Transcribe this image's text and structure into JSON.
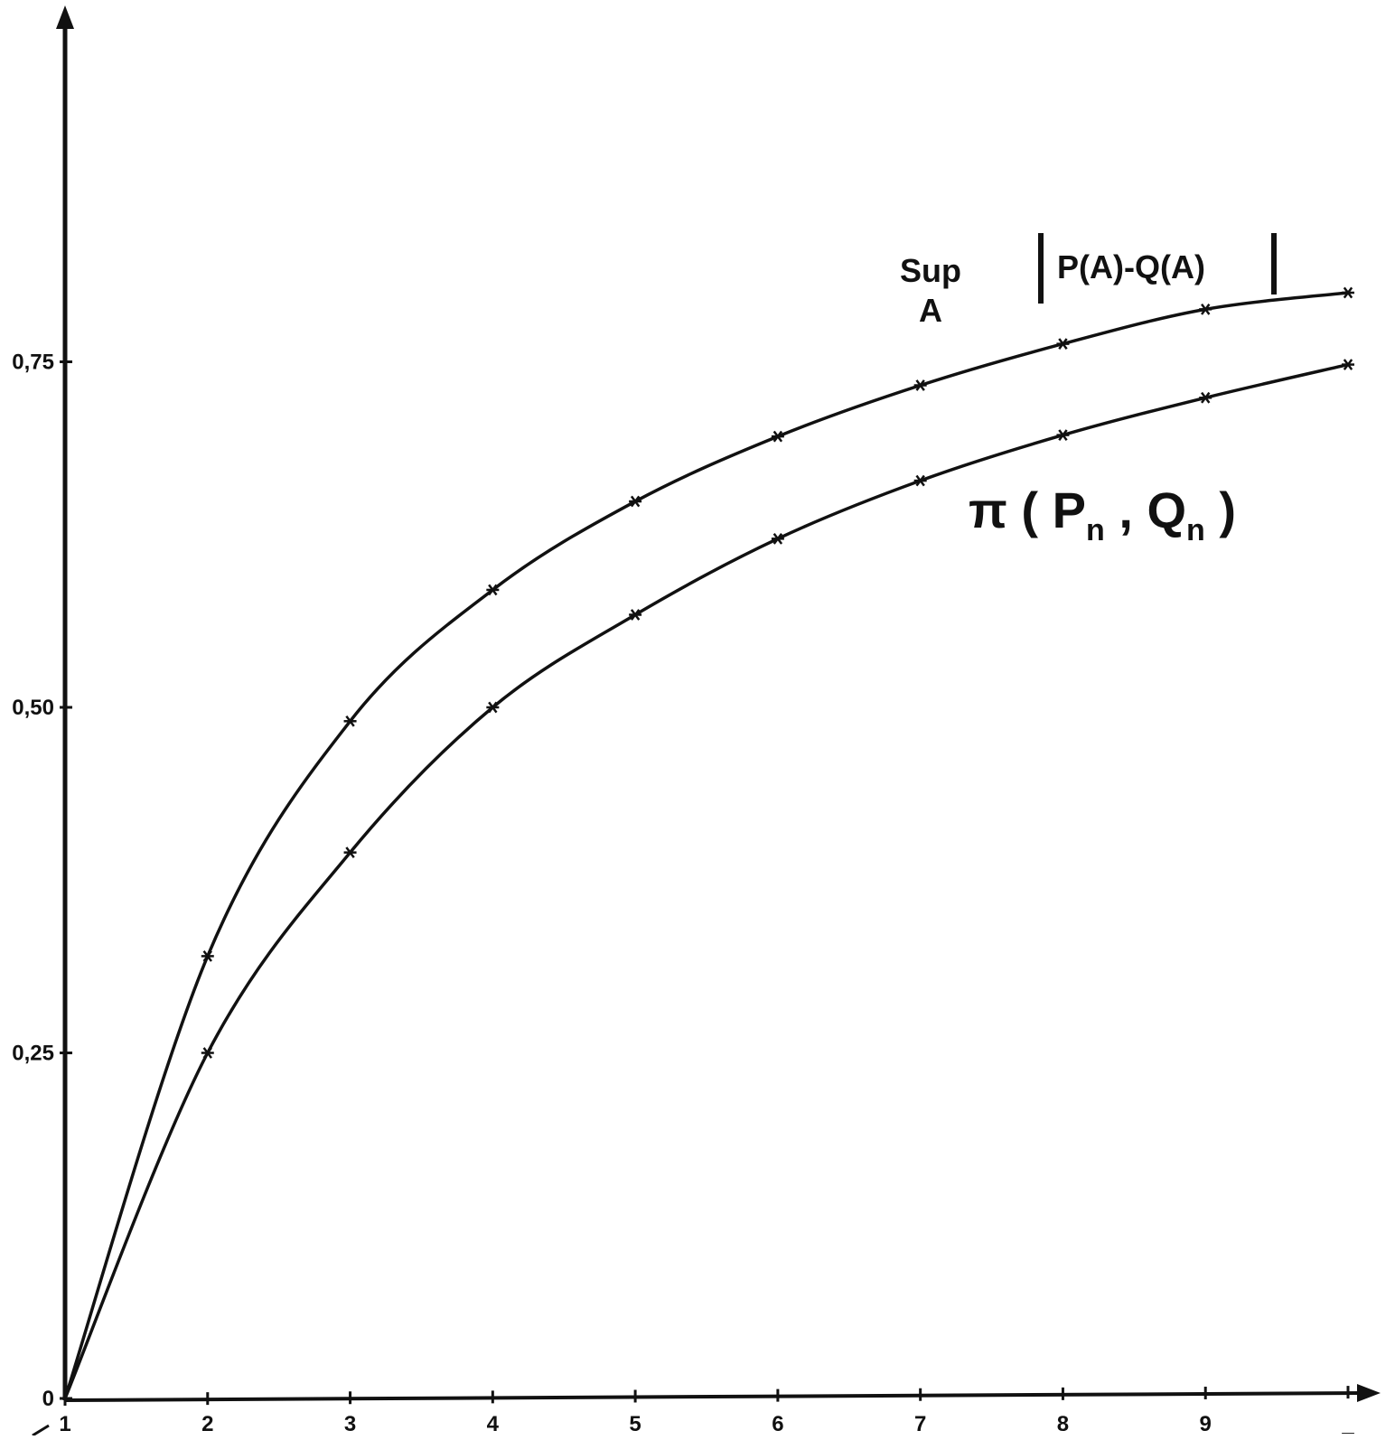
{
  "chart_data": {
    "type": "line",
    "x": [
      1,
      2,
      3,
      4,
      5,
      6,
      7,
      8,
      9,
      10
    ],
    "xlim": [
      1,
      10
    ],
    "ylim": [
      0,
      1.0
    ],
    "x_tick_labels": [
      "1",
      "2",
      "3",
      "4",
      "5",
      "6",
      "7",
      "8",
      "9",
      "_"
    ],
    "y_ticks": [
      0,
      0.25,
      0.5,
      0.75
    ],
    "y_tick_labels": [
      "0",
      "0,25",
      "0,50",
      "0,75"
    ],
    "grid": false,
    "marker": "star",
    "color": "#111111",
    "series": [
      {
        "values": [
          0,
          0.32,
          0.49,
          0.585,
          0.649,
          0.696,
          0.733,
          0.763,
          0.788,
          0.8
        ]
      },
      {
        "values": [
          0,
          0.25,
          0.395,
          0.5,
          0.567,
          0.622,
          0.664,
          0.697,
          0.724,
          0.748
        ]
      }
    ],
    "annotations": {
      "sup_top": "Sup",
      "sup_bottom": "A",
      "sup_expr": "P(A)-Q(A)",
      "pi_main": "π ( P",
      "pi_sub_n1": "n",
      "pi_comma_q": " , Q",
      "pi_sub_n2": "n",
      "pi_close": " )"
    }
  }
}
